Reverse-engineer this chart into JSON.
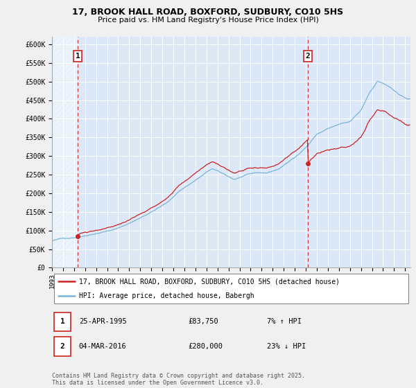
{
  "title_line1": "17, BROOK HALL ROAD, BOXFORD, SUDBURY, CO10 5HS",
  "title_line2": "Price paid vs. HM Land Registry's House Price Index (HPI)",
  "xlim_start": 1993.0,
  "xlim_end": 2025.5,
  "ylim_min": 0,
  "ylim_max": 620000,
  "yticks": [
    0,
    50000,
    100000,
    150000,
    200000,
    250000,
    300000,
    350000,
    400000,
    450000,
    500000,
    550000,
    600000
  ],
  "ytick_labels": [
    "£0",
    "£50K",
    "£100K",
    "£150K",
    "£200K",
    "£250K",
    "£300K",
    "£350K",
    "£400K",
    "£450K",
    "£500K",
    "£550K",
    "£600K"
  ],
  "sale1_date": 1995.32,
  "sale1_price": 83750,
  "sale2_date": 2016.17,
  "sale2_price": 280000,
  "hpi_line_color": "#7ab4d8",
  "price_line_color": "#cc2222",
  "sale_marker_color": "#cc2222",
  "vline_color": "#cc2222",
  "plot_bg": "#dce8f8",
  "grid_color": "#ffffff",
  "legend_line1": "17, BROOK HALL ROAD, BOXFORD, SUDBURY, CO10 5HS (detached house)",
  "legend_line2": "HPI: Average price, detached house, Babergh",
  "ann1_date": "25-APR-1995",
  "ann1_price": "£83,750",
  "ann1_hpi": "7% ↑ HPI",
  "ann2_date": "04-MAR-2016",
  "ann2_price": "£280,000",
  "ann2_hpi": "23% ↓ HPI",
  "footer": "Contains HM Land Registry data © Crown copyright and database right 2025.\nThis data is licensed under the Open Government Licence v3.0.",
  "xtick_years": [
    1993,
    1994,
    1995,
    1996,
    1997,
    1998,
    1999,
    2000,
    2001,
    2002,
    2003,
    2004,
    2005,
    2006,
    2007,
    2008,
    2009,
    2010,
    2011,
    2012,
    2013,
    2014,
    2015,
    2016,
    2017,
    2018,
    2019,
    2020,
    2021,
    2022,
    2023,
    2024,
    2025
  ]
}
